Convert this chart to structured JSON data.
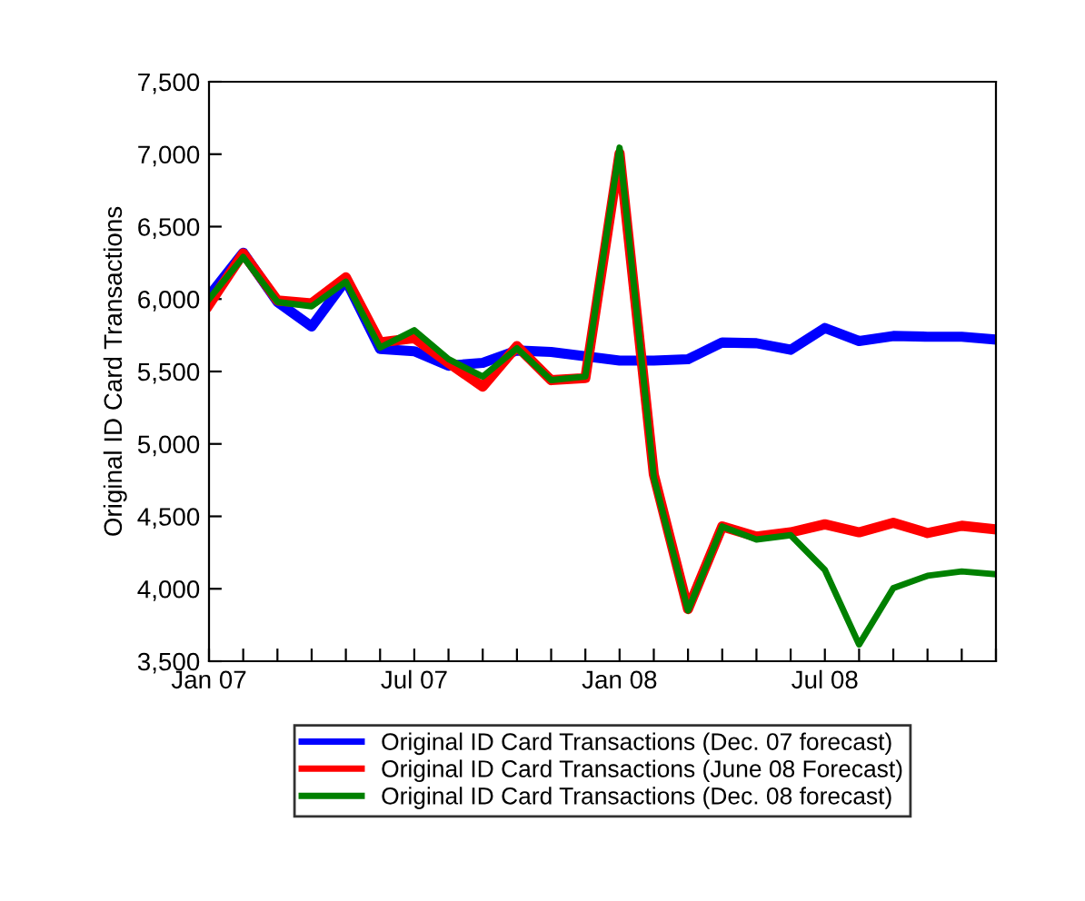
{
  "chart_data": {
    "type": "line",
    "ylabel": "Original ID Card Transactions",
    "x": [
      "2007-01",
      "2007-02",
      "2007-03",
      "2007-04",
      "2007-05",
      "2007-06",
      "2007-07",
      "2007-08",
      "2007-09",
      "2007-10",
      "2007-11",
      "2007-12",
      "2008-01",
      "2008-02",
      "2008-03",
      "2008-04",
      "2008-05",
      "2008-06",
      "2008-07",
      "2008-08",
      "2008-09",
      "2008-10",
      "2008-11",
      "2008-12"
    ],
    "series": [
      {
        "name": "Original ID Card Transactions (Dec. 07 forecast)",
        "color": "#0000ff",
        "values": [
          6020,
          6320,
          5980,
          5810,
          6130,
          5655,
          5640,
          5540,
          5560,
          5645,
          5635,
          5605,
          5575,
          5575,
          5585,
          5700,
          5695,
          5650,
          5800,
          5710,
          5745,
          5740,
          5740,
          5720
        ]
      },
      {
        "name": "Original ID Card Transactions (June 08 Forecast)",
        "color": "#ff0000",
        "values": [
          5960,
          6315,
          5990,
          5970,
          6150,
          5700,
          5730,
          5560,
          5395,
          5675,
          5440,
          5455,
          7005,
          4790,
          3860,
          4430,
          4360,
          4390,
          4445,
          4390,
          4455,
          4385,
          4435,
          4410
        ]
      },
      {
        "name": "Original ID Card Transactions (Dec. 08 forecast)",
        "color": "#008000",
        "values": [
          6000,
          6290,
          5980,
          5950,
          6120,
          5665,
          5785,
          5585,
          5465,
          5660,
          5440,
          5465,
          7045,
          4770,
          3850,
          4430,
          4340,
          4370,
          4130,
          3615,
          4005,
          4090,
          4120,
          4100
        ]
      }
    ],
    "xlim": [
      "2007-01",
      "2008-12"
    ],
    "xticks": [
      {
        "value": "2007-01",
        "label": "Jan 07"
      },
      {
        "value": "2007-02",
        "label": null
      },
      {
        "value": "2007-03",
        "label": null
      },
      {
        "value": "2007-04",
        "label": null
      },
      {
        "value": "2007-05",
        "label": null
      },
      {
        "value": "2007-06",
        "label": null
      },
      {
        "value": "2007-07",
        "label": "Jul 07"
      },
      {
        "value": "2007-08",
        "label": null
      },
      {
        "value": "2007-09",
        "label": null
      },
      {
        "value": "2007-10",
        "label": null
      },
      {
        "value": "2007-11",
        "label": null
      },
      {
        "value": "2007-12",
        "label": null
      },
      {
        "value": "2008-01",
        "label": "Jan 08"
      },
      {
        "value": "2008-02",
        "label": null
      },
      {
        "value": "2008-03",
        "label": null
      },
      {
        "value": "2008-04",
        "label": null
      },
      {
        "value": "2008-05",
        "label": null
      },
      {
        "value": "2008-06",
        "label": null
      },
      {
        "value": "2008-07",
        "label": "Jul 08"
      },
      {
        "value": "2008-08",
        "label": null
      },
      {
        "value": "2008-09",
        "label": null
      },
      {
        "value": "2008-10",
        "label": null
      },
      {
        "value": "2008-11",
        "label": null
      },
      {
        "value": "2008-12",
        "label": null
      }
    ],
    "ylim": [
      3500,
      7500
    ],
    "yticks": [
      {
        "value": 3500,
        "label": "3,500"
      },
      {
        "value": 4000,
        "label": "4,000"
      },
      {
        "value": 4500,
        "label": "4,500"
      },
      {
        "value": 5000,
        "label": "5,000"
      },
      {
        "value": 5500,
        "label": "5,500"
      },
      {
        "value": 6000,
        "label": "6,000"
      },
      {
        "value": 6500,
        "label": "6,500"
      },
      {
        "value": 7000,
        "label": "7,000"
      },
      {
        "value": 7500,
        "label": "7,500"
      }
    ],
    "grid": false,
    "legend": "bottom",
    "marker": "none",
    "line_style": "solid"
  }
}
